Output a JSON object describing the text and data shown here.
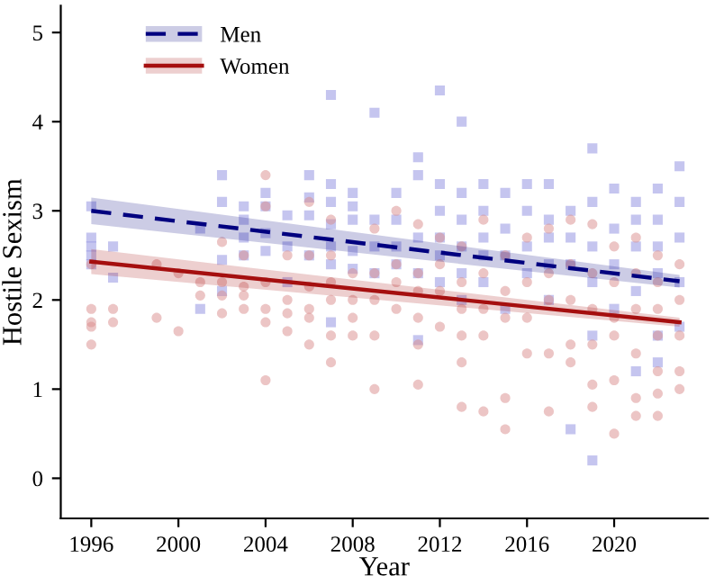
{
  "chart_data": {
    "type": "scatter",
    "xlabel": "Year",
    "ylabel": "Hostile Sexism",
    "xlim": [
      1994.6,
      2024.3
    ],
    "ylim": [
      -0.45,
      5.3
    ],
    "xticks": [
      1996,
      2000,
      2004,
      2008,
      2012,
      2016,
      2020
    ],
    "yticks": [
      0,
      1,
      2,
      3,
      4,
      5
    ],
    "grid": false,
    "legend": "top left",
    "series": [
      {
        "marker": "square",
        "color": "#8c8ce0",
        "x": [
          1996,
          1996,
          1996,
          1996,
          1996,
          1997,
          1997,
          2001,
          2001,
          2002,
          2002,
          2002,
          2002,
          2003,
          2003,
          2003,
          2003,
          2004,
          2004,
          2004,
          2004,
          2005,
          2005,
          2005,
          2006,
          2006,
          2006,
          2006,
          2007,
          2007,
          2007,
          2007,
          2007,
          2007,
          2007,
          2008,
          2008,
          2008,
          2008,
          2008,
          2009,
          2009,
          2009,
          2009,
          2010,
          2010,
          2010,
          2010,
          2011,
          2011,
          2011,
          2011,
          2011,
          2012,
          2012,
          2012,
          2012,
          2012,
          2012,
          2013,
          2013,
          2013,
          2013,
          2013,
          2013,
          2014,
          2014,
          2014,
          2014,
          2014,
          2015,
          2015,
          2015,
          2015,
          2016,
          2016,
          2016,
          2016,
          2017,
          2017,
          2017,
          2017,
          2017,
          2018,
          2018,
          2018,
          2018,
          2019,
          2019,
          2019,
          2019,
          2019,
          2019,
          2020,
          2020,
          2020,
          2020,
          2021,
          2021,
          2021,
          2021,
          2021,
          2022,
          2022,
          2022,
          2022,
          2022,
          2022,
          2023,
          2023,
          2023,
          2023,
          2023
        ],
        "values": [
          3.05,
          2.7,
          2.6,
          2.5,
          2.4,
          2.6,
          2.25,
          2.8,
          1.9,
          3.4,
          3.1,
          2.45,
          2.1,
          3.05,
          2.9,
          2.7,
          2.5,
          3.2,
          3.05,
          2.75,
          2.55,
          2.95,
          2.6,
          2.2,
          3.4,
          3.15,
          2.95,
          2.5,
          4.3,
          3.3,
          3.1,
          2.85,
          2.6,
          2.4,
          1.75,
          3.2,
          3.05,
          2.9,
          2.55,
          2.35,
          4.1,
          2.9,
          2.6,
          2.3,
          3.2,
          2.9,
          2.6,
          2.4,
          3.6,
          3.4,
          2.7,
          2.3,
          1.55,
          4.35,
          3.3,
          3.0,
          2.7,
          2.5,
          2.2,
          4.0,
          3.2,
          2.9,
          2.6,
          2.3,
          2.0,
          3.3,
          3.0,
          2.7,
          2.5,
          2.2,
          3.2,
          2.8,
          2.5,
          1.9,
          3.3,
          3.0,
          2.6,
          2.3,
          3.3,
          2.9,
          2.7,
          2.4,
          2.0,
          3.0,
          2.7,
          2.4,
          0.55,
          3.7,
          3.1,
          2.6,
          2.2,
          1.6,
          0.2,
          3.25,
          2.8,
          2.4,
          1.9,
          3.1,
          2.9,
          2.6,
          2.1,
          1.2,
          3.25,
          2.9,
          2.6,
          2.3,
          1.6,
          1.3,
          3.5,
          3.1,
          2.7,
          2.2,
          1.7
        ]
      },
      {
        "marker": "circle",
        "color": "#d98c8c",
        "x": [
          1996,
          1996,
          1996,
          1996,
          1996,
          1997,
          1997,
          1999,
          1999,
          2000,
          2000,
          2001,
          2001,
          2002,
          2002,
          2002,
          2002,
          2003,
          2003,
          2003,
          2003,
          2004,
          2004,
          2004,
          2004,
          2004,
          2004,
          2005,
          2005,
          2005,
          2005,
          2006,
          2006,
          2006,
          2006,
          2006,
          2006,
          2007,
          2007,
          2007,
          2007,
          2007,
          2007,
          2008,
          2008,
          2008,
          2008,
          2009,
          2009,
          2009,
          2009,
          2009,
          2010,
          2010,
          2010,
          2010,
          2011,
          2011,
          2011,
          2011,
          2011,
          2011,
          2012,
          2012,
          2012,
          2012,
          2013,
          2013,
          2013,
          2013,
          2013,
          2013,
          2014,
          2014,
          2014,
          2014,
          2014,
          2015,
          2015,
          2015,
          2015,
          2015,
          2016,
          2016,
          2016,
          2016,
          2017,
          2017,
          2017,
          2017,
          2017,
          2018,
          2018,
          2018,
          2018,
          2018,
          2019,
          2019,
          2019,
          2019,
          2019,
          2019,
          2020,
          2020,
          2020,
          2020,
          2020,
          2020,
          2021,
          2021,
          2021,
          2021,
          2021,
          2021,
          2022,
          2022,
          2022,
          2022,
          2022,
          2022,
          2022,
          2023,
          2023,
          2023,
          2023,
          2023
        ],
        "values": [
          2.4,
          1.9,
          1.75,
          1.7,
          1.5,
          1.9,
          1.75,
          2.4,
          1.8,
          2.3,
          1.65,
          2.2,
          2.05,
          2.65,
          2.2,
          2.05,
          1.85,
          2.5,
          2.15,
          2.05,
          1.9,
          3.4,
          3.05,
          2.2,
          1.9,
          1.75,
          1.1,
          2.5,
          2.0,
          1.85,
          1.65,
          3.1,
          2.5,
          2.15,
          1.9,
          1.8,
          1.5,
          2.9,
          2.5,
          2.2,
          2.0,
          1.6,
          1.3,
          2.3,
          2.0,
          1.8,
          1.6,
          2.8,
          2.3,
          2.0,
          1.6,
          1.0,
          3.0,
          2.4,
          2.2,
          1.9,
          2.85,
          2.3,
          2.1,
          1.8,
          1.5,
          1.05,
          2.7,
          2.4,
          2.1,
          1.7,
          2.6,
          2.2,
          1.9,
          1.6,
          1.3,
          0.8,
          2.9,
          2.3,
          1.9,
          1.6,
          0.75,
          2.5,
          2.1,
          1.8,
          0.9,
          0.55,
          2.7,
          2.2,
          1.8,
          1.4,
          2.8,
          2.3,
          2.0,
          1.4,
          0.75,
          2.9,
          2.4,
          2.0,
          1.5,
          1.3,
          2.85,
          2.3,
          1.9,
          1.5,
          1.05,
          0.8,
          2.6,
          2.2,
          1.8,
          1.6,
          1.1,
          0.5,
          2.7,
          2.3,
          1.9,
          1.4,
          0.9,
          0.7,
          2.5,
          2.2,
          1.9,
          1.6,
          1.2,
          0.95,
          0.7,
          2.4,
          2.0,
          1.6,
          1.2,
          1.0
        ]
      },
      {
        "type": "line",
        "name": "Men",
        "color": "#00007f",
        "line_style": "dashed",
        "marker": "none",
        "x": [
          1996,
          2023
        ],
        "values": [
          3.0,
          2.21
        ],
        "lower": [
          2.85,
          2.14
        ],
        "upper": [
          3.15,
          2.28
        ]
      },
      {
        "type": "line",
        "name": "Women",
        "color": "#a50f0f",
        "line_style": "solid",
        "marker": "none",
        "x": [
          1996,
          2023
        ],
        "values": [
          2.43,
          1.75
        ],
        "lower": [
          2.29,
          1.7
        ],
        "upper": [
          2.57,
          1.8
        ]
      }
    ]
  }
}
